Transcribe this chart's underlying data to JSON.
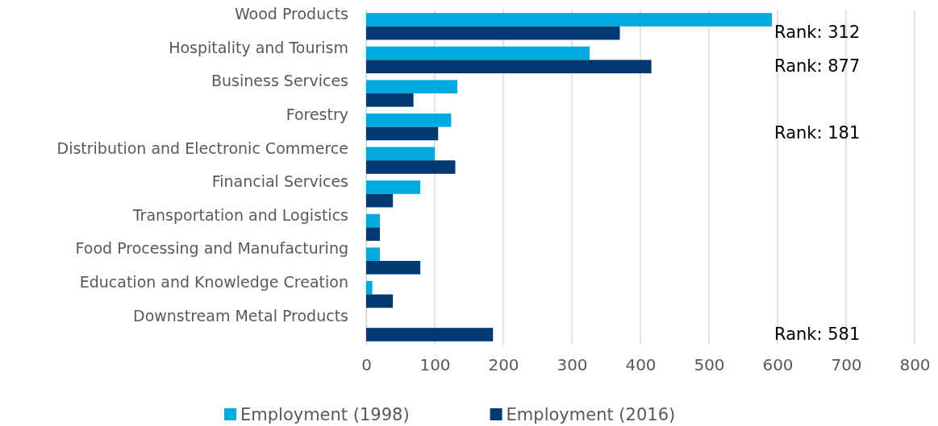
{
  "chart_data": {
    "type": "bar",
    "orientation": "horizontal",
    "categories": [
      "Wood Products",
      "Hospitality and Tourism",
      "Business Services",
      "Forestry",
      "Distribution and Electronic Commerce",
      "Financial Services",
      "Transportation and Logistics",
      "Food Processing and Manufacturing",
      "Education and Knowledge Creation",
      "Downstream Metal Products"
    ],
    "series": [
      {
        "name": "Employment (1998)",
        "color": "#00a9e0",
        "values": [
          592,
          326,
          133,
          124,
          100,
          79,
          20,
          20,
          9,
          null
        ]
      },
      {
        "name": "Employment (2016)",
        "color": "#003a70",
        "values": [
          370,
          416,
          69,
          105,
          130,
          39,
          20,
          79,
          39,
          185
        ]
      }
    ],
    "xlim": [
      0,
      800
    ],
    "xticks": [
      0,
      100,
      200,
      300,
      400,
      500,
      600,
      700,
      800
    ],
    "grid": "x",
    "legend": "bottom",
    "annotations": [
      "Rank: 312",
      "Rank: 877",
      "Rank: 181",
      "Rank: 581"
    ]
  }
}
